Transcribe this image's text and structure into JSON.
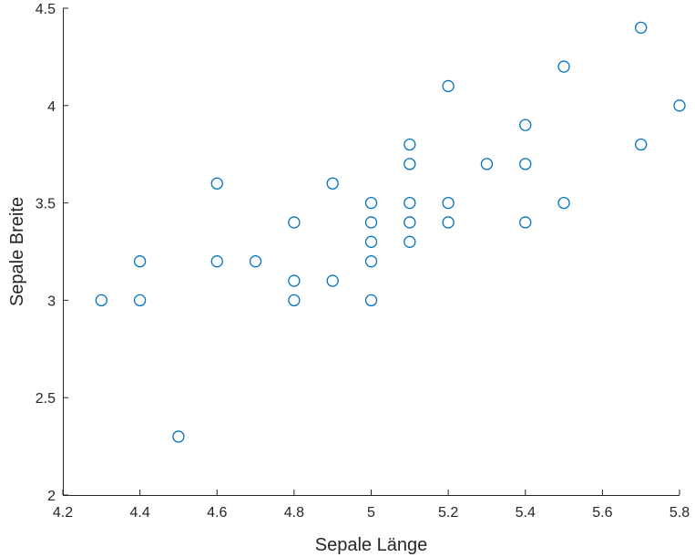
{
  "chart_data": {
    "type": "scatter",
    "title": "",
    "xlabel": "Sepale Länge",
    "ylabel": "Sepale Breite",
    "xlim": [
      4.2,
      5.8
    ],
    "ylim": [
      2,
      4.5
    ],
    "xticks": [
      "4.2",
      "4.4",
      "4.6",
      "4.8",
      "5",
      "5.2",
      "5.4",
      "5.6",
      "5.8"
    ],
    "yticks": [
      "2",
      "2.5",
      "3",
      "3.5",
      "4",
      "4.5"
    ],
    "grid": false,
    "legend": "none",
    "marker_color": "#0072BD",
    "marker": "circle-open",
    "series": [
      {
        "points": [
          [
            4.3,
            3.0
          ],
          [
            4.4,
            3.2
          ],
          [
            4.4,
            3.0
          ],
          [
            4.5,
            2.3
          ],
          [
            4.6,
            3.6
          ],
          [
            4.6,
            3.2
          ],
          [
            4.7,
            3.2
          ],
          [
            4.8,
            3.4
          ],
          [
            4.8,
            3.1
          ],
          [
            4.8,
            3.0
          ],
          [
            4.9,
            3.6
          ],
          [
            4.9,
            3.1
          ],
          [
            5.0,
            3.5
          ],
          [
            5.0,
            3.4
          ],
          [
            5.0,
            3.3
          ],
          [
            5.0,
            3.2
          ],
          [
            5.0,
            3.0
          ],
          [
            5.1,
            3.8
          ],
          [
            5.1,
            3.7
          ],
          [
            5.1,
            3.5
          ],
          [
            5.1,
            3.4
          ],
          [
            5.1,
            3.3
          ],
          [
            5.2,
            4.1
          ],
          [
            5.2,
            3.5
          ],
          [
            5.2,
            3.4
          ],
          [
            5.3,
            3.7
          ],
          [
            5.4,
            3.9
          ],
          [
            5.4,
            3.7
          ],
          [
            5.4,
            3.4
          ],
          [
            5.5,
            4.2
          ],
          [
            5.5,
            3.5
          ],
          [
            5.7,
            4.4
          ],
          [
            5.7,
            3.8
          ],
          [
            5.8,
            4.0
          ]
        ]
      }
    ]
  }
}
